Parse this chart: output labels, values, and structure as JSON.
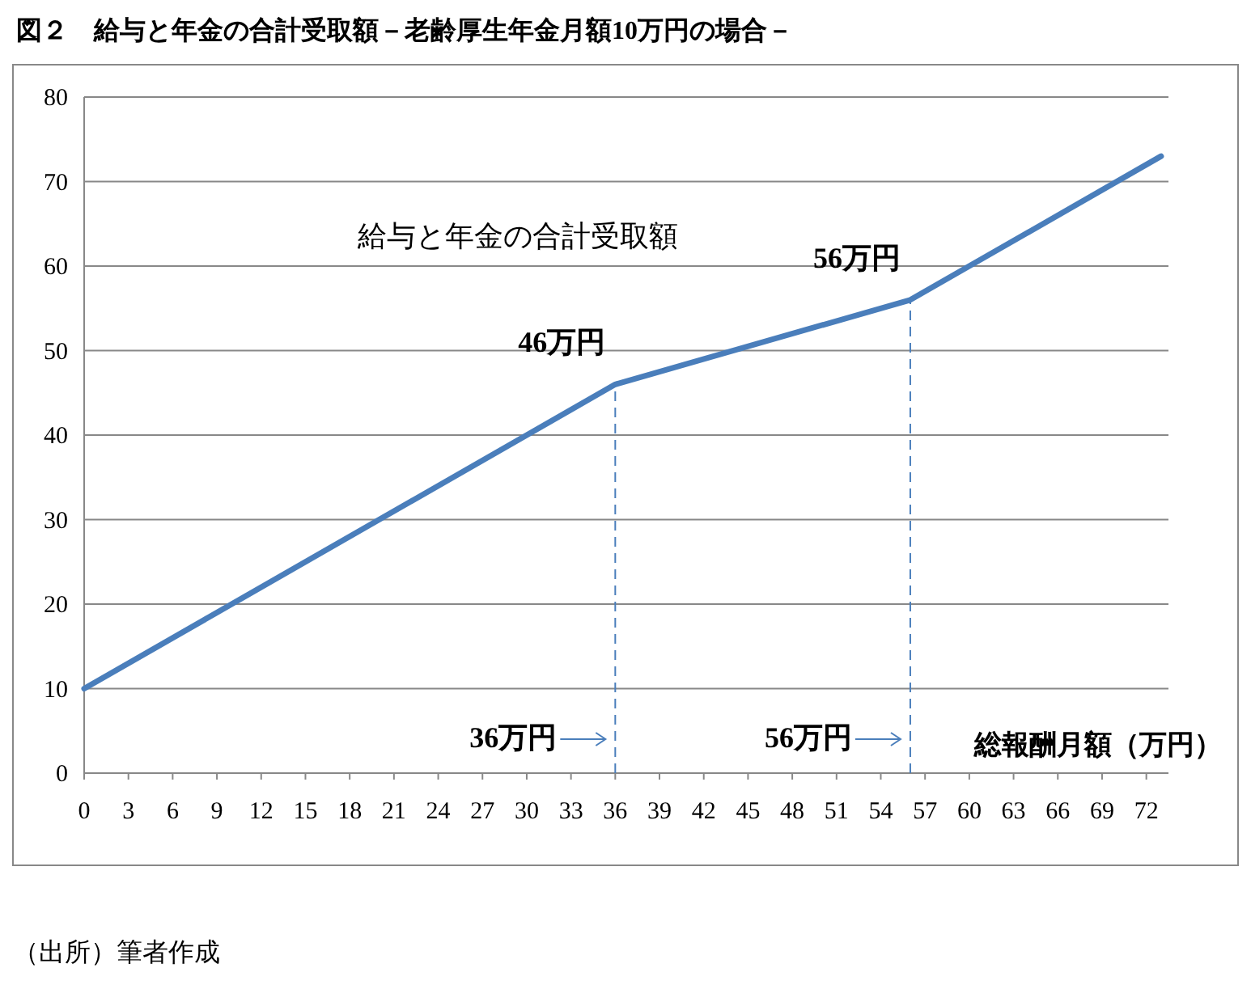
{
  "chart_data": {
    "type": "line",
    "title": "図２　給与と年金の合計受取額－老齢厚生年金月額10万円の場合－",
    "xlabel": "総報酬月額（万円）",
    "x": [
      0,
      36,
      56,
      73
    ],
    "series": [
      {
        "color": "#4a7ebb",
        "values": [
          10,
          46,
          56,
          73
        ]
      }
    ],
    "xlim": [
      0,
      73.5
    ],
    "xticks": [
      0,
      3,
      6,
      9,
      12,
      15,
      18,
      21,
      24,
      27,
      30,
      33,
      36,
      39,
      42,
      45,
      48,
      51,
      54,
      57,
      60,
      63,
      66,
      69,
      72
    ],
    "ylim": [
      0,
      80
    ],
    "yticks": [
      0,
      10,
      20,
      30,
      40,
      50,
      60,
      70,
      80
    ],
    "grid": "y",
    "marker": "none",
    "line_style": "solid",
    "ref_lines": [
      {
        "axis": "x",
        "value": 36,
        "label": "36万円",
        "line_style": "dashed",
        "color": "#4a7ebb"
      },
      {
        "axis": "x",
        "value": 56,
        "label": "56万円",
        "line_style": "dashed",
        "color": "#4a7ebb"
      }
    ],
    "annotations": [
      "給与と年金の合計受取額",
      {
        "text": "46万円",
        "x": 36,
        "y": 46
      },
      {
        "text": "56万円",
        "x": 56,
        "y": 56
      },
      "（出所）筆者作成"
    ]
  }
}
